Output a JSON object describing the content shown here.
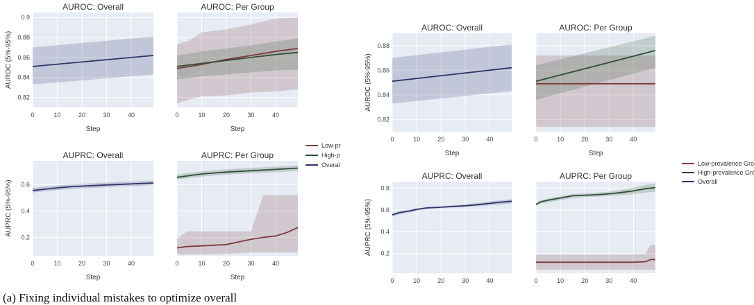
{
  "caption": "(a) Fixing individual mistakes to optimize overall",
  "colors": {
    "overall": "#2f3568",
    "low": "#7b3b3b",
    "high": "#2f4f34",
    "plot_bg": "#e6ebf4",
    "grid": "#ffffff"
  },
  "legend_left": [
    "Low-pr",
    "High-p",
    "Overal"
  ],
  "legend_right": [
    "Low-prevalence Group",
    "High-prevalence Group",
    "Overall"
  ],
  "chart_data": [
    {
      "type": "line",
      "title": "AUROC: Overall",
      "xlabel": "Step",
      "ylabel": "AUROC (5%-95%)",
      "xlim": [
        0,
        49
      ],
      "ylim": [
        0.81,
        0.905
      ],
      "xticks": [
        "0",
        "10",
        "20",
        "30",
        "40"
      ],
      "yticks": [
        "0.82",
        "0.84",
        "0.86",
        "0.88",
        "0.9"
      ],
      "series": [
        {
          "name": "Overall",
          "x": [
            0,
            49
          ],
          "y": [
            0.851,
            0.862
          ],
          "lower": [
            0.833,
            0.843
          ],
          "upper": [
            0.87,
            0.881
          ]
        }
      ]
    },
    {
      "type": "line",
      "title": "AUROC: Per Group",
      "xlabel": "Step",
      "ylabel": "",
      "xlim": [
        0,
        49
      ],
      "ylim": [
        0.81,
        0.905
      ],
      "xticks": [
        "0",
        "10",
        "20",
        "30",
        "40"
      ],
      "yticks": [],
      "series": [
        {
          "name": "Low-pr",
          "x": [
            0,
            5,
            10,
            20,
            30,
            40,
            49
          ],
          "y": [
            0.849,
            0.851,
            0.853,
            0.858,
            0.862,
            0.866,
            0.869
          ],
          "lower": [
            0.814,
            0.818,
            0.821,
            0.822,
            0.825,
            0.826,
            0.828
          ],
          "upper": [
            0.873,
            0.877,
            0.885,
            0.888,
            0.893,
            0.899,
            0.9
          ]
        },
        {
          "name": "High-p",
          "x": [
            0,
            10,
            20,
            30,
            40,
            49
          ],
          "y": [
            0.851,
            0.854,
            0.857,
            0.86,
            0.863,
            0.865
          ],
          "lower": [
            0.838,
            0.841,
            0.843,
            0.845,
            0.847,
            0.848
          ],
          "upper": [
            0.862,
            0.866,
            0.869,
            0.872,
            0.876,
            0.879
          ]
        }
      ]
    },
    {
      "type": "line",
      "title": "AUPRC: Overall",
      "xlabel": "Step",
      "ylabel": "AUPRC (5%-95%)",
      "xlim": [
        0,
        49
      ],
      "ylim": [
        0.06,
        0.78
      ],
      "xticks": [
        "0",
        "10",
        "20",
        "30",
        "40"
      ],
      "yticks": [
        "0.2",
        "0.4",
        "0.6"
      ],
      "series": [
        {
          "name": "Overall",
          "x": [
            0,
            5,
            10,
            15,
            20,
            30,
            40,
            49
          ],
          "y": [
            0.555,
            0.565,
            0.575,
            0.583,
            0.588,
            0.597,
            0.605,
            0.612
          ],
          "lower": [
            0.54,
            0.548,
            0.557,
            0.565,
            0.571,
            0.58,
            0.588,
            0.595
          ],
          "upper": [
            0.575,
            0.585,
            0.594,
            0.6,
            0.606,
            0.615,
            0.624,
            0.63
          ]
        }
      ]
    },
    {
      "type": "line",
      "title": "AUPRC: Per Group",
      "xlabel": "Step",
      "ylabel": "",
      "xlim": [
        0,
        49
      ],
      "ylim": [
        0.06,
        0.78
      ],
      "xticks": [
        "0",
        "10",
        "20",
        "30",
        "40"
      ],
      "yticks": [],
      "series": [
        {
          "name": "High-p",
          "x": [
            0,
            10,
            20,
            30,
            40,
            49
          ],
          "y": [
            0.655,
            0.68,
            0.695,
            0.705,
            0.715,
            0.725
          ],
          "lower": [
            0.638,
            0.66,
            0.675,
            0.685,
            0.695,
            0.703
          ],
          "upper": [
            0.675,
            0.7,
            0.716,
            0.727,
            0.737,
            0.745
          ]
        },
        {
          "name": "Low-pr",
          "x": [
            0,
            4,
            10,
            20,
            25,
            30,
            35,
            40,
            45,
            49
          ],
          "y": [
            0.12,
            0.13,
            0.135,
            0.145,
            0.165,
            0.185,
            0.2,
            0.21,
            0.24,
            0.275
          ],
          "lower": [
            0.07,
            0.07,
            0.07,
            0.075,
            0.08,
            0.085,
            0.085,
            0.085,
            0.085,
            0.085
          ],
          "upper": [
            0.19,
            0.245,
            0.245,
            0.245,
            0.245,
            0.245,
            0.52,
            0.52,
            0.52,
            0.52
          ]
        }
      ]
    },
    {
      "type": "line",
      "title": "AUROC: Overall",
      "xlabel": "Step",
      "ylabel": "AUROC (5%-95%)",
      "xlim": [
        0,
        49
      ],
      "ylim": [
        0.81,
        0.89
      ],
      "xticks": [
        "0",
        "10",
        "20",
        "30",
        "40"
      ],
      "yticks": [
        "0.82",
        "0.84",
        "0.86",
        "0.88"
      ],
      "series": [
        {
          "name": "Overall",
          "x": [
            0,
            49
          ],
          "y": [
            0.851,
            0.862
          ],
          "lower": [
            0.833,
            0.843
          ],
          "upper": [
            0.87,
            0.881
          ]
        }
      ]
    },
    {
      "type": "line",
      "title": "AUROC: Per Group",
      "xlabel": "Step",
      "ylabel": "",
      "xlim": [
        0,
        49
      ],
      "ylim": [
        0.81,
        0.89
      ],
      "xticks": [
        "0",
        "10",
        "20",
        "30",
        "40"
      ],
      "yticks": [],
      "series": [
        {
          "name": "Low-prevalence Group",
          "x": [
            0,
            49
          ],
          "y": [
            0.849,
            0.849
          ],
          "lower": [
            0.814,
            0.814
          ],
          "upper": [
            0.872,
            0.872
          ]
        },
        {
          "name": "High-prevalence Group",
          "x": [
            0,
            49
          ],
          "y": [
            0.851,
            0.876
          ],
          "lower": [
            0.836,
            0.862
          ],
          "upper": [
            0.864,
            0.888
          ]
        }
      ]
    },
    {
      "type": "line",
      "title": "AUPRC: Overall",
      "xlabel": "Step",
      "ylabel": "AUPRC (5%-95%)",
      "xlim": [
        0,
        49
      ],
      "ylim": [
        0.02,
        0.86
      ],
      "xticks": [
        "0",
        "10",
        "20",
        "30",
        "40"
      ],
      "yticks": [
        "0.2",
        "0.4",
        "0.6",
        "0.8"
      ],
      "series": [
        {
          "name": "Overall",
          "x": [
            0,
            3,
            7,
            10,
            14,
            20,
            25,
            30,
            35,
            40,
            45,
            49
          ],
          "y": [
            0.555,
            0.575,
            0.59,
            0.605,
            0.618,
            0.625,
            0.632,
            0.638,
            0.648,
            0.66,
            0.672,
            0.68
          ],
          "lower": [
            0.54,
            0.56,
            0.575,
            0.592,
            0.608,
            0.615,
            0.622,
            0.628,
            0.635,
            0.642,
            0.652,
            0.66
          ],
          "upper": [
            0.57,
            0.59,
            0.605,
            0.615,
            0.625,
            0.632,
            0.642,
            0.652,
            0.665,
            0.678,
            0.69,
            0.7
          ]
        }
      ]
    },
    {
      "type": "line",
      "title": "AUPRC: Per Group",
      "xlabel": "Step",
      "ylabel": "",
      "xlim": [
        0,
        49
      ],
      "ylim": [
        0.02,
        0.86
      ],
      "xticks": [
        "0",
        "10",
        "20",
        "30",
        "40"
      ],
      "yticks": [],
      "series": [
        {
          "name": "High-prevalence Group",
          "x": [
            0,
            2,
            5,
            10,
            15,
            20,
            25,
            30,
            35,
            40,
            45,
            49
          ],
          "y": [
            0.65,
            0.675,
            0.69,
            0.71,
            0.73,
            0.735,
            0.74,
            0.748,
            0.76,
            0.775,
            0.795,
            0.805
          ],
          "lower": [
            0.64,
            0.66,
            0.67,
            0.69,
            0.71,
            0.718,
            0.722,
            0.728,
            0.735,
            0.745,
            0.76,
            0.765
          ],
          "upper": [
            0.665,
            0.69,
            0.705,
            0.725,
            0.745,
            0.752,
            0.758,
            0.768,
            0.785,
            0.805,
            0.83,
            0.845
          ]
        },
        {
          "name": "Low-prevalence Group",
          "x": [
            0,
            10,
            20,
            30,
            40,
            45,
            47,
            49
          ],
          "y": [
            0.12,
            0.12,
            0.12,
            0.12,
            0.12,
            0.125,
            0.145,
            0.145
          ],
          "lower": [
            0.05,
            0.05,
            0.05,
            0.05,
            0.05,
            0.05,
            0.05,
            0.05
          ],
          "upper": [
            0.19,
            0.19,
            0.19,
            0.19,
            0.19,
            0.2,
            0.28,
            0.28
          ]
        }
      ]
    }
  ]
}
